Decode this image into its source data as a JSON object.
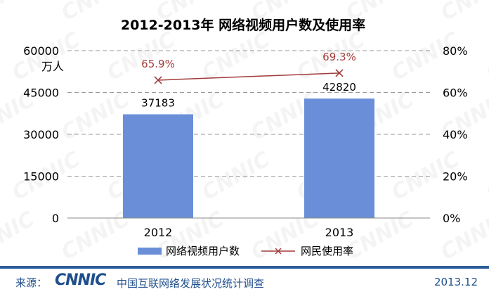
{
  "chart_data": {
    "type": "bar",
    "title": "2012-2013年 网络视频用户数及使用率",
    "categories": [
      "2012",
      "2013"
    ],
    "y_left": {
      "unit_label": "万人",
      "ylim": [
        0,
        60000
      ],
      "ticks": [
        "60000",
        "45000",
        "30000",
        "15000",
        "0"
      ]
    },
    "y_right": {
      "ylim": [
        0,
        80
      ],
      "ticks": [
        "80%",
        "60%",
        "40%",
        "20%",
        "0%"
      ]
    },
    "series": [
      {
        "name": "网络视频用户数",
        "kind": "bar",
        "axis": "left",
        "values": [
          37183,
          42820
        ],
        "labels": [
          "37183",
          "42820"
        ],
        "color": "#6a8fd8"
      },
      {
        "name": "网民使用率",
        "kind": "line",
        "axis": "right",
        "values": [
          65.9,
          69.3
        ],
        "labels": [
          "65.9%",
          "69.3%"
        ],
        "color": "#a23b3b"
      }
    ],
    "grid": true,
    "legend_position": "bottom"
  },
  "watermark": "CNNIC",
  "footer": {
    "source_label": "来源：",
    "logo_text": "CNNIC",
    "org_name": "中国互联网络发展状况统计调查",
    "date": "2013.12"
  }
}
